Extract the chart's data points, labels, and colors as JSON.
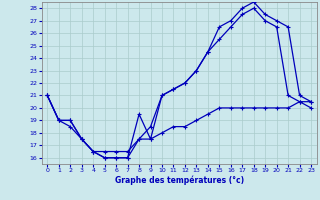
{
  "xlabel": "Graphe des températures (°c)",
  "bg_color": "#cce8ec",
  "grid_color": "#aacccc",
  "line_color": "#0000bb",
  "xlim": [
    -0.5,
    23.5
  ],
  "ylim": [
    15.5,
    28.5
  ],
  "yticks": [
    16,
    17,
    18,
    19,
    20,
    21,
    22,
    23,
    24,
    25,
    26,
    27,
    28
  ],
  "xticks": [
    0,
    1,
    2,
    3,
    4,
    5,
    6,
    7,
    8,
    9,
    10,
    11,
    12,
    13,
    14,
    15,
    16,
    17,
    18,
    19,
    20,
    21,
    22,
    23
  ],
  "line1_x": [
    0,
    1,
    2,
    3,
    4,
    5,
    6,
    7,
    8,
    9,
    10,
    11,
    12,
    13,
    14,
    15,
    16,
    17,
    18,
    19,
    20,
    21,
    22,
    23
  ],
  "line1_y": [
    21,
    19,
    19,
    17.5,
    16.5,
    16,
    16,
    16,
    19.5,
    17.5,
    21,
    21.5,
    22,
    23,
    24.5,
    26.5,
    27,
    28,
    28.5,
    27.5,
    27,
    26.5,
    21,
    20.5
  ],
  "line2_x": [
    0,
    1,
    2,
    3,
    4,
    5,
    6,
    7,
    8,
    9,
    10,
    11,
    12,
    13,
    14,
    15,
    16,
    17,
    18,
    19,
    20,
    21,
    22,
    23
  ],
  "line2_y": [
    21,
    19,
    19,
    17.5,
    16.5,
    16,
    16,
    16,
    17.5,
    18.5,
    21,
    21.5,
    22,
    23,
    24.5,
    25.5,
    26.5,
    27.5,
    28,
    27,
    26.5,
    21,
    20.5,
    20.5
  ],
  "line3_x": [
    0,
    1,
    2,
    3,
    4,
    5,
    6,
    7,
    8,
    9,
    10,
    11,
    12,
    13,
    14,
    15,
    16,
    17,
    18,
    19,
    20,
    21,
    22,
    23
  ],
  "line3_y": [
    21,
    19,
    18.5,
    17.5,
    16.5,
    16.5,
    16.5,
    16.5,
    17.5,
    17.5,
    18,
    18.5,
    18.5,
    19,
    19.5,
    20,
    20,
    20,
    20,
    20,
    20,
    20,
    20.5,
    20
  ]
}
